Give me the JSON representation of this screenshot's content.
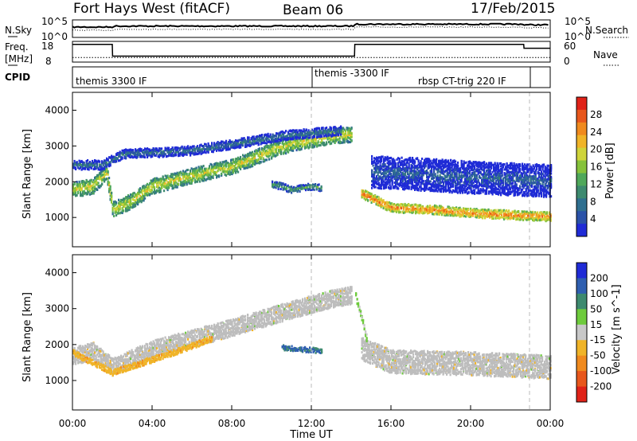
{
  "header": {
    "station": "Fort Hays West (fitACF)",
    "beam": "Beam 06",
    "date": "17/Feb/2015"
  },
  "top_panels": {
    "noise_left_label": "N.Sky",
    "noise_left_ticks": [
      "10^5",
      "10^0"
    ],
    "noise_right_label": "N.Search",
    "noise_right_ticks": [
      "10^5",
      "10^0"
    ],
    "freq_label_line1": "Freq.",
    "freq_label_line2": "[MHz]",
    "freq_ticks": [
      "18",
      "8"
    ],
    "nave_label": "Nave",
    "nave_ticks": [
      "60",
      "0"
    ],
    "cpid_label": "CPID",
    "cpid_modes": [
      "themis 3300 IF",
      "themis -3300 IF",
      "rbsp CT-trig 220 IF"
    ]
  },
  "colors": {
    "power_scale": [
      "#1f2bd6",
      "#2a52a8",
      "#2f6f8f",
      "#3d8a6f",
      "#4fa85a",
      "#86c23a",
      "#cfd43a",
      "#f0b428",
      "#f08a1e",
      "#e8571c",
      "#e02218"
    ],
    "velocity_scale": [
      "#1f2bd6",
      "#2f5fb0",
      "#3d8a6f",
      "#6ecb3c",
      "#c8c8c8",
      "#f0b428",
      "#f08a1e",
      "#e8571c",
      "#e02218"
    ],
    "ground_scatter": "#bdbdbd"
  },
  "chart_data": [
    {
      "type": "line",
      "title": "Fort Hays West (fitACF)",
      "subtitle": "Beam 06",
      "x": [
        "00:00",
        "02:00",
        "02:01",
        "14:10",
        "14:11",
        "22:40",
        "22:41",
        "24:00"
      ],
      "series": [
        {
          "name": "N.Sky",
          "values": [
            1000,
            1000,
            2000,
            1800,
            8000,
            5000,
            5000,
            5000
          ]
        },
        {
          "name": "N.Search",
          "values": [
            100,
            100,
            200,
            250,
            1000,
            600,
            600,
            600
          ]
        },
        {
          "name": "Freq.",
          "values": [
            17.2,
            17.2,
            10.5,
            10.5,
            17.2,
            17.2,
            15.0,
            15.0
          ]
        },
        {
          "name": "Nave",
          "values": [
            10,
            10,
            10,
            10,
            10,
            10,
            10,
            10
          ]
        }
      ]
    },
    {
      "type": "heatmap",
      "ylabel": "Slant Range [km]",
      "xlabel": "Time UT",
      "xlim_hours": [
        0,
        24
      ],
      "ylim_km": [
        180,
        4500
      ],
      "x_ticks": [
        "00:00",
        "04:00",
        "08:00",
        "12:00",
        "16:00",
        "20:00",
        "00:00"
      ],
      "y_ticks": [
        1000,
        2000,
        3000,
        4000
      ],
      "colorbar": {
        "label": "Power [dB]",
        "ticks": [
          "28",
          "24",
          "20",
          "16",
          "12",
          "8",
          "4"
        ],
        "range": [
          0,
          30
        ]
      },
      "cpid_changes_hours": [
        12.0,
        22.9
      ],
      "bands": [
        {
          "name": "main scatter",
          "points_hours_km": [
            [
              0,
              1800
            ],
            [
              1,
              1900
            ],
            [
              1.7,
              2300
            ],
            [
              2,
              1250
            ],
            [
              3,
              1500
            ],
            [
              4,
              1900
            ],
            [
              6,
              2200
            ],
            [
              8,
              2450
            ],
            [
              10,
              2900
            ],
            [
              11,
              3100
            ],
            [
              12,
              3200
            ],
            [
              13,
              3300
            ],
            [
              14,
              3350
            ]
          ],
          "width_km": 420,
          "power_db": 18
        },
        {
          "name": "upper layer",
          "points_hours_km": [
            [
              0,
              2500
            ],
            [
              1.5,
              2500
            ],
            [
              2.5,
              2800
            ],
            [
              6,
              2900
            ],
            [
              11,
              3350
            ],
            [
              13.5,
              3450
            ]
          ],
          "width_km": 260,
          "power_db": 8
        },
        {
          "name": "post-shift band",
          "points_hours_km": [
            [
              14.5,
              1700
            ],
            [
              16,
              1300
            ],
            [
              18,
              1250
            ],
            [
              20,
              1150
            ],
            [
              22,
              1100
            ],
            [
              24,
              1050
            ]
          ],
          "width_km": 250,
          "power_db": 24
        },
        {
          "name": "post-shift diffuse",
          "points_hours_km": [
            [
              15,
              2300
            ],
            [
              17,
              2250
            ],
            [
              20,
              2150
            ],
            [
              24,
              2050
            ]
          ],
          "width_km": 900,
          "power_db": 6
        },
        {
          "name": "mid patch",
          "points_hours_km": [
            [
              10,
              1950
            ],
            [
              10.5,
              1900
            ],
            [
              11,
              1800
            ],
            [
              12,
              1900
            ],
            [
              12.5,
              1850
            ]
          ],
          "width_km": 180,
          "power_db": 12
        }
      ]
    },
    {
      "type": "heatmap",
      "ylabel": "Slant Range [km]",
      "xlabel": "Time UT",
      "xlim_hours": [
        0,
        24
      ],
      "ylim_km": [
        180,
        4500
      ],
      "x_ticks": [
        "00:00",
        "04:00",
        "08:00",
        "12:00",
        "16:00",
        "20:00",
        "00:00"
      ],
      "y_ticks": [
        1000,
        2000,
        3000,
        4000
      ],
      "colorbar": {
        "label": "Velocity [m s^-1]",
        "ticks": [
          "200",
          "100",
          "50",
          "15",
          "-15",
          "-50",
          "-100",
          "-200"
        ],
        "range": [
          -250,
          250
        ]
      },
      "bands": [
        {
          "name": "ground scatter",
          "points_hours_km": [
            [
              0,
              1700
            ],
            [
              1,
              1850
            ],
            [
              2,
              1400
            ],
            [
              4,
              1900
            ],
            [
              6,
              2200
            ],
            [
              8,
              2500
            ],
            [
              11,
              3000
            ],
            [
              13,
              3300
            ],
            [
              14,
              3400
            ]
          ],
          "width_km": 480,
          "velocity": 0
        },
        {
          "name": "post-shift ground scatter",
          "points_hours_km": [
            [
              14.5,
              1900
            ],
            [
              16,
              1550
            ],
            [
              20,
              1500
            ],
            [
              24,
              1400
            ]
          ],
          "width_km": 650,
          "velocity": 0
        },
        {
          "name": "negative patch",
          "points_hours_km": [
            [
              0,
              1800
            ],
            [
              2,
              1250
            ],
            [
              5,
              1800
            ],
            [
              7,
              2200
            ]
          ],
          "width_km": 160,
          "velocity": -60
        },
        {
          "name": "mid positive patch",
          "points_hours_km": [
            [
              10.5,
              1950
            ],
            [
              11.5,
              1900
            ],
            [
              12.5,
              1850
            ]
          ],
          "width_km": 140,
          "velocity": 150
        },
        {
          "name": "green streak",
          "points_hours_km": [
            [
              14.2,
              3400
            ],
            [
              14.8,
              2100
            ]
          ],
          "width_km": 220,
          "velocity": 40
        }
      ]
    }
  ]
}
